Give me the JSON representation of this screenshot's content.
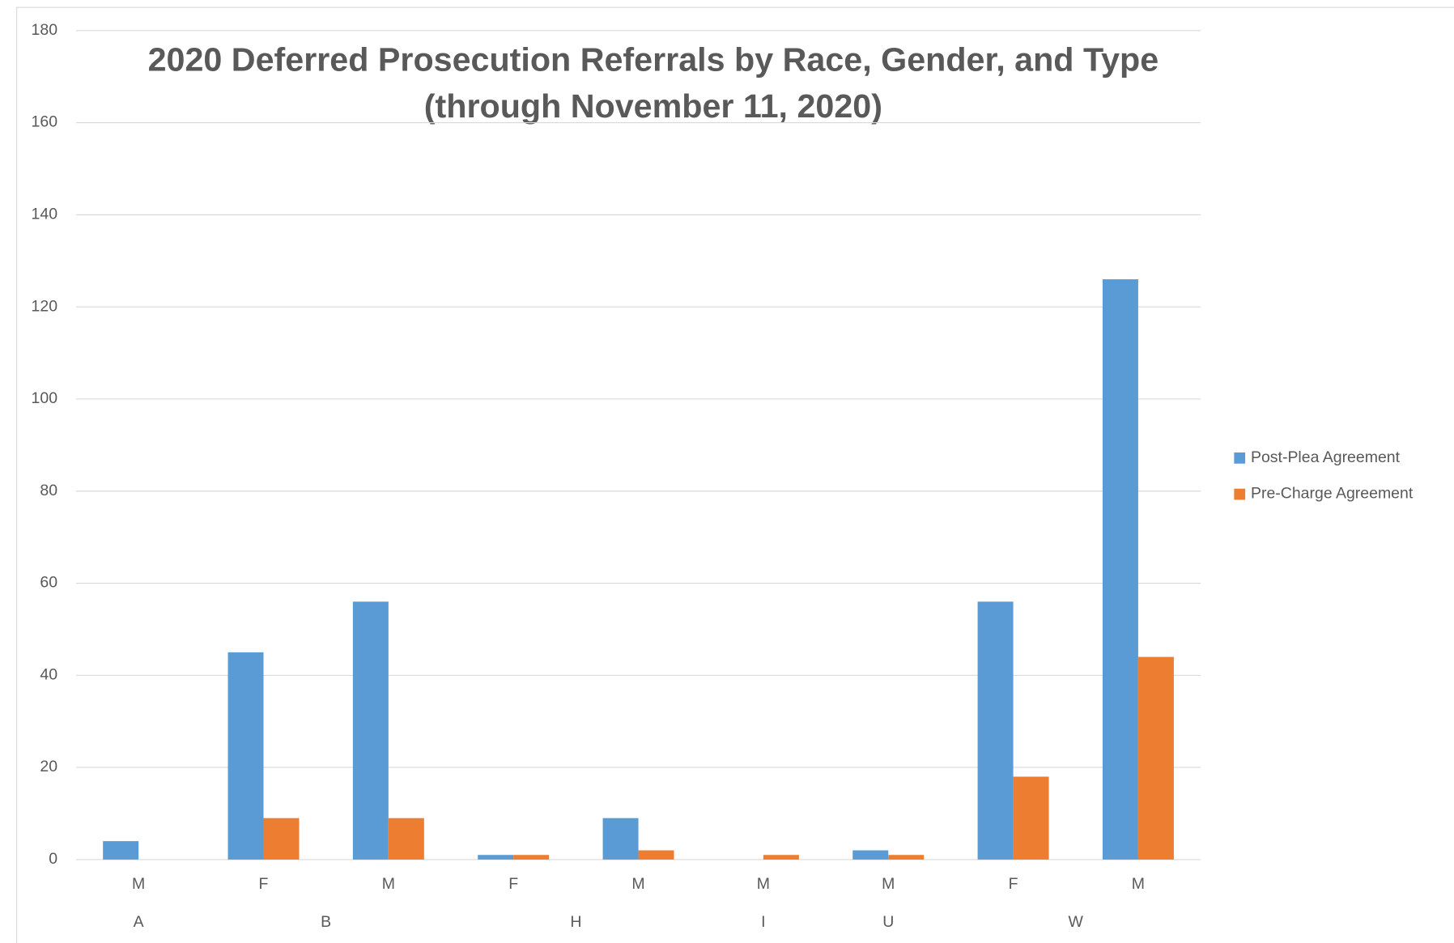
{
  "chart_data": {
    "type": "bar",
    "title": [
      "2020 Deferred Prosecution Referrals by Race, Gender, and Type",
      "(through November 11, 2020)"
    ],
    "groups": [
      {
        "name": "A",
        "categories": [
          "M"
        ]
      },
      {
        "name": "B",
        "categories": [
          "F",
          "M"
        ]
      },
      {
        "name": "H",
        "categories": [
          "F",
          "M"
        ]
      },
      {
        "name": "I",
        "categories": [
          "M"
        ]
      },
      {
        "name": "U",
        "categories": [
          "M"
        ]
      },
      {
        "name": "W",
        "categories": [
          "F",
          "M"
        ]
      }
    ],
    "series": [
      {
        "name": "Post-Plea Agreement",
        "color": "#5b9bd5",
        "values": [
          4,
          45,
          56,
          1,
          9,
          0,
          2,
          56,
          126
        ]
      },
      {
        "name": "Pre-Charge Agreement",
        "color": "#ed7d31",
        "values": [
          0,
          9,
          9,
          1,
          2,
          1,
          1,
          18,
          44
        ]
      }
    ],
    "ylim": [
      0,
      180
    ],
    "yticks": [
      0,
      20,
      40,
      60,
      80,
      100,
      120,
      140,
      160,
      180
    ],
    "grid": true,
    "legend": "right"
  }
}
